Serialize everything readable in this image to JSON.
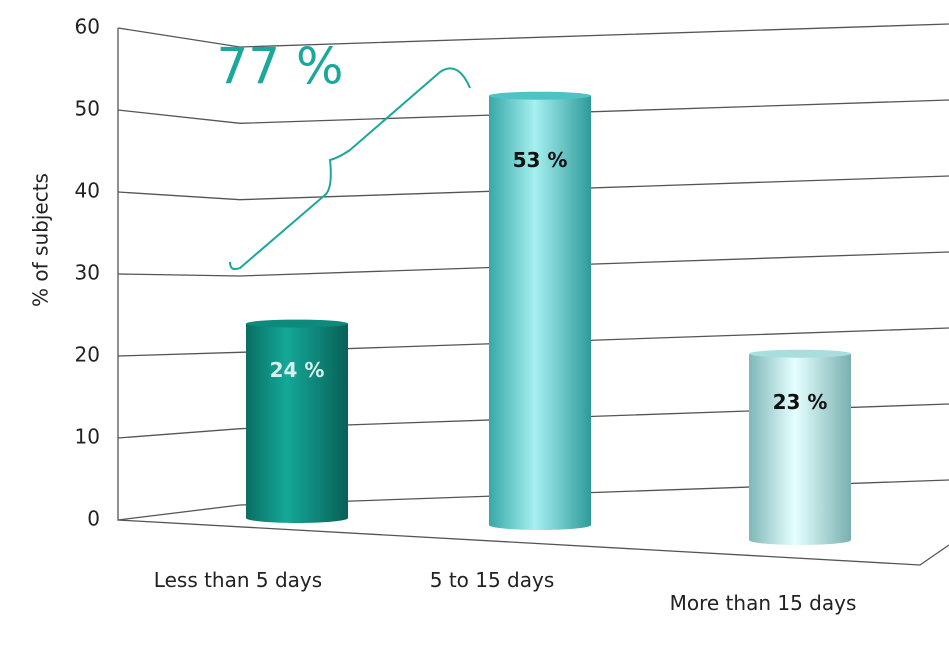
{
  "chart_data": {
    "type": "bar",
    "ylabel": "% of subjects",
    "categories": [
      "Less than 5 days",
      "5 to 15 days",
      "More than 15 days"
    ],
    "values": [
      24,
      53,
      23
    ],
    "value_labels": [
      "24 %",
      "53 %",
      "23 %"
    ],
    "colors": [
      "#0e8a7c",
      "#4fc3c3",
      "#a9dede"
    ],
    "ylim": [
      0,
      60
    ],
    "yticks": [
      0,
      10,
      20,
      30,
      40,
      50,
      60
    ],
    "grid": true,
    "annotation": "77 %"
  }
}
